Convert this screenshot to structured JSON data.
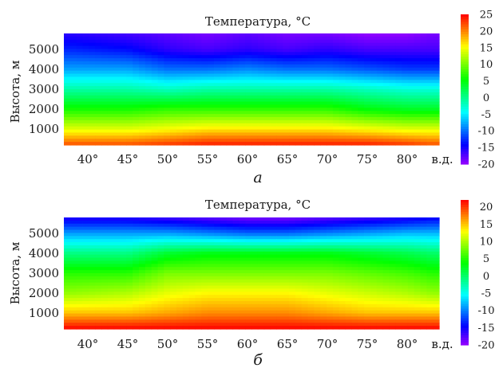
{
  "chart_data": [
    {
      "type": "heatmap",
      "panel_label": "а",
      "title": "Температура, °C",
      "ylabel": "Высота, м",
      "xlabel": "в.д.",
      "x_ticks": [
        "40°",
        "45°",
        "50°",
        "55°",
        "60°",
        "65°",
        "70°",
        "75°",
        "80°"
      ],
      "y_ticks": [
        "1000",
        "2000",
        "3000",
        "4000",
        "5000"
      ],
      "xlim": [
        37,
        84
      ],
      "ylim": [
        200,
        5800
      ],
      "colorbar": {
        "min": -20,
        "max": 25,
        "ticks": [
          "-20",
          "-15",
          "-10",
          "-5",
          "0",
          "5",
          "10",
          "15",
          "20",
          "25"
        ],
        "colormap": "hsv-rainbow"
      },
      "longitudes": [
        38,
        45,
        50,
        55,
        60,
        65,
        70,
        75,
        80,
        83
      ],
      "heights": [
        200,
        1000,
        2000,
        3000,
        4000,
        5000,
        5800
      ],
      "values": [
        [
          22,
          22,
          23,
          24,
          24,
          24,
          24,
          24,
          23,
          22
        ],
        [
          14,
          14,
          15,
          16,
          16,
          16,
          16,
          15,
          14,
          14
        ],
        [
          6,
          6,
          7,
          7,
          7,
          7,
          7,
          5,
          4,
          4
        ],
        [
          -1,
          -1,
          -2,
          -1,
          -1,
          -1,
          -1,
          -2,
          -3,
          -3
        ],
        [
          -8,
          -8,
          -10,
          -10,
          -9,
          -10,
          -10,
          -11,
          -12,
          -12
        ],
        [
          -13,
          -14,
          -16,
          -17,
          -16,
          -17,
          -16,
          -17,
          -17,
          -17
        ],
        [
          -16,
          -17,
          -18,
          -19,
          -18,
          -19,
          -19,
          -20,
          -20,
          -19
        ]
      ]
    },
    {
      "type": "heatmap",
      "panel_label": "б",
      "title": "Температура, °C",
      "ylabel": "Высота, м",
      "xlabel": "в.д.",
      "x_ticks": [
        "40°",
        "45°",
        "50°",
        "55°",
        "60°",
        "65°",
        "70°",
        "75°",
        "80°"
      ],
      "y_ticks": [
        "1000",
        "2000",
        "3000",
        "4000",
        "5000"
      ],
      "xlim": [
        37,
        84
      ],
      "ylim": [
        200,
        5800
      ],
      "colorbar": {
        "min": -20,
        "max": 22,
        "ticks": [
          "-20",
          "-15",
          "-10",
          "-5",
          "0",
          "5",
          "10",
          "15",
          "20"
        ],
        "colormap": "hsv-rainbow"
      },
      "longitudes": [
        38,
        45,
        50,
        55,
        60,
        65,
        70,
        75,
        80,
        83
      ],
      "heights": [
        200,
        1000,
        2000,
        3000,
        4000,
        5000,
        5800
      ],
      "values": [
        [
          22,
          22,
          22,
          22,
          22,
          22,
          22,
          22,
          22,
          22
        ],
        [
          15,
          15,
          16,
          17,
          17,
          17,
          16,
          15,
          15,
          15
        ],
        [
          9,
          10,
          12,
          13,
          13,
          13,
          12,
          11,
          10,
          9
        ],
        [
          5,
          5,
          8,
          8,
          8,
          8,
          8,
          7,
          6,
          5
        ],
        [
          -1,
          -1,
          2,
          3,
          3,
          3,
          3,
          2,
          1,
          0
        ],
        [
          -9,
          -9,
          -9,
          -10,
          -11,
          -11,
          -10,
          -9,
          -8,
          -8
        ],
        [
          -16,
          -16,
          -17,
          -18,
          -19,
          -19,
          -18,
          -17,
          -16,
          -15
        ]
      ]
    }
  ]
}
